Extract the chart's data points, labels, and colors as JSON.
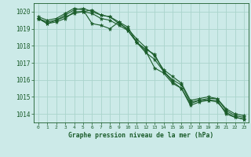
{
  "title": "Graphe pression niveau de la mer (hPa)",
  "bg_color": "#cceae8",
  "grid_color": "#aad4cc",
  "line_color": "#1a5c2a",
  "xlim": [
    -0.5,
    23.5
  ],
  "ylim": [
    1013.5,
    1020.5
  ],
  "yticks": [
    1014,
    1015,
    1016,
    1017,
    1018,
    1019,
    1020
  ],
  "xticks": [
    0,
    1,
    2,
    3,
    4,
    5,
    6,
    7,
    8,
    9,
    10,
    11,
    12,
    13,
    14,
    15,
    16,
    17,
    18,
    19,
    20,
    21,
    22,
    23
  ],
  "series": [
    [
      1019.6,
      1019.4,
      1019.5,
      1019.7,
      1019.9,
      1020.0,
      1020.1,
      1019.8,
      1019.7,
      1019.4,
      1019.1,
      1018.2,
      1017.8,
      1017.5,
      1016.5,
      1016.0,
      1015.7,
      1014.7,
      1014.8,
      1014.9,
      1014.9,
      1014.2,
      1013.9,
      1013.8
    ],
    [
      1019.6,
      1019.3,
      1019.4,
      1019.6,
      1020.0,
      1020.0,
      1019.9,
      1019.6,
      1019.5,
      1019.2,
      1018.9,
      1018.2,
      1017.6,
      1017.2,
      1016.5,
      1015.9,
      1015.5,
      1014.6,
      1014.8,
      1014.8,
      1014.8,
      1014.0,
      1013.8,
      1013.7
    ],
    [
      1019.6,
      1019.3,
      1019.5,
      1019.8,
      1020.1,
      1020.2,
      1020.0,
      1019.8,
      1019.7,
      1019.3,
      1019.0,
      1018.4,
      1017.9,
      1017.4,
      1016.6,
      1016.2,
      1015.8,
      1014.8,
      1014.9,
      1015.0,
      1014.9,
      1014.3,
      1014.0,
      1013.9
    ],
    [
      1019.7,
      1019.5,
      1019.6,
      1019.9,
      1020.2,
      1020.1,
      1019.3,
      1019.2,
      1019.0,
      1019.4,
      1018.9,
      1018.2,
      1017.7,
      1016.7,
      1016.4,
      1015.8,
      1015.5,
      1014.5,
      1014.7,
      1014.8,
      1014.7,
      1014.1,
      1013.8,
      1013.7
    ]
  ]
}
